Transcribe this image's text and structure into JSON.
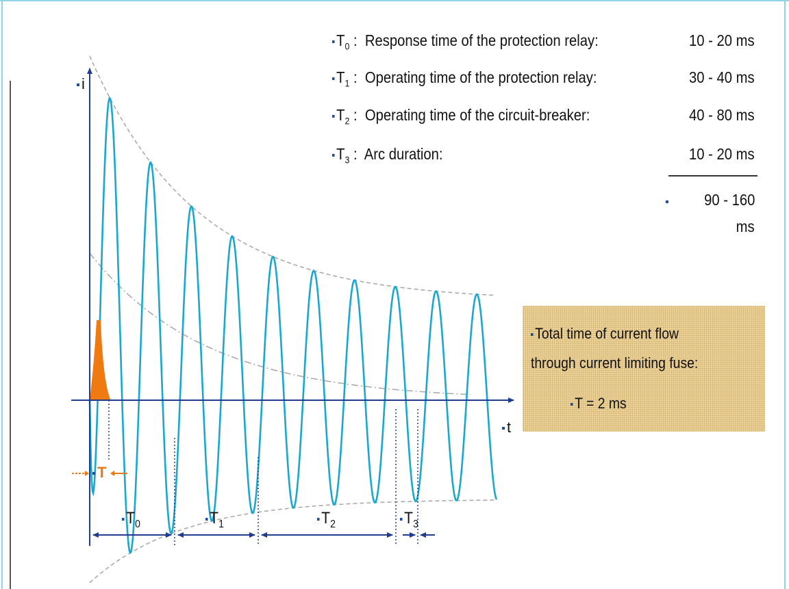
{
  "legend": [
    {
      "label": "T",
      "sub": "0",
      "desc": "Response time of the protection relay:",
      "range": "10 -   20  ms"
    },
    {
      "label": "T",
      "sub": "1",
      "desc": "Operating time of the protection relay:",
      "range": "30 -   40  ms"
    },
    {
      "label": "T",
      "sub": "2",
      "desc": "Operating time of the circuit-breaker:",
      "range": "40 -   80  ms"
    },
    {
      "label": "T",
      "sub": "3",
      "desc": "Arc duration:",
      "range": "10 -   20  ms"
    }
  ],
  "total": {
    "value": "90 - 160",
    "unit": "ms"
  },
  "fuse_box": {
    "line1": "Total time of current flow",
    "line2": "through  current limiting fuse:",
    "line3": "T =  2  ms"
  },
  "axes": {
    "y": "i",
    "x": "t"
  },
  "fuse_marker": "T",
  "segments": [
    {
      "label": "T",
      "sub": "0"
    },
    {
      "label": "T",
      "sub": "1"
    },
    {
      "label": "T",
      "sub": "2"
    },
    {
      "label": "T",
      "sub": "3"
    }
  ],
  "colors": {
    "wave": "#1aa7cf",
    "axis": "#1f3c8f",
    "envelope": "#a6a6a6",
    "fuse": "#f07a12",
    "fuse_box": "#ecd39a",
    "bullet": "#1f4e9a"
  }
}
